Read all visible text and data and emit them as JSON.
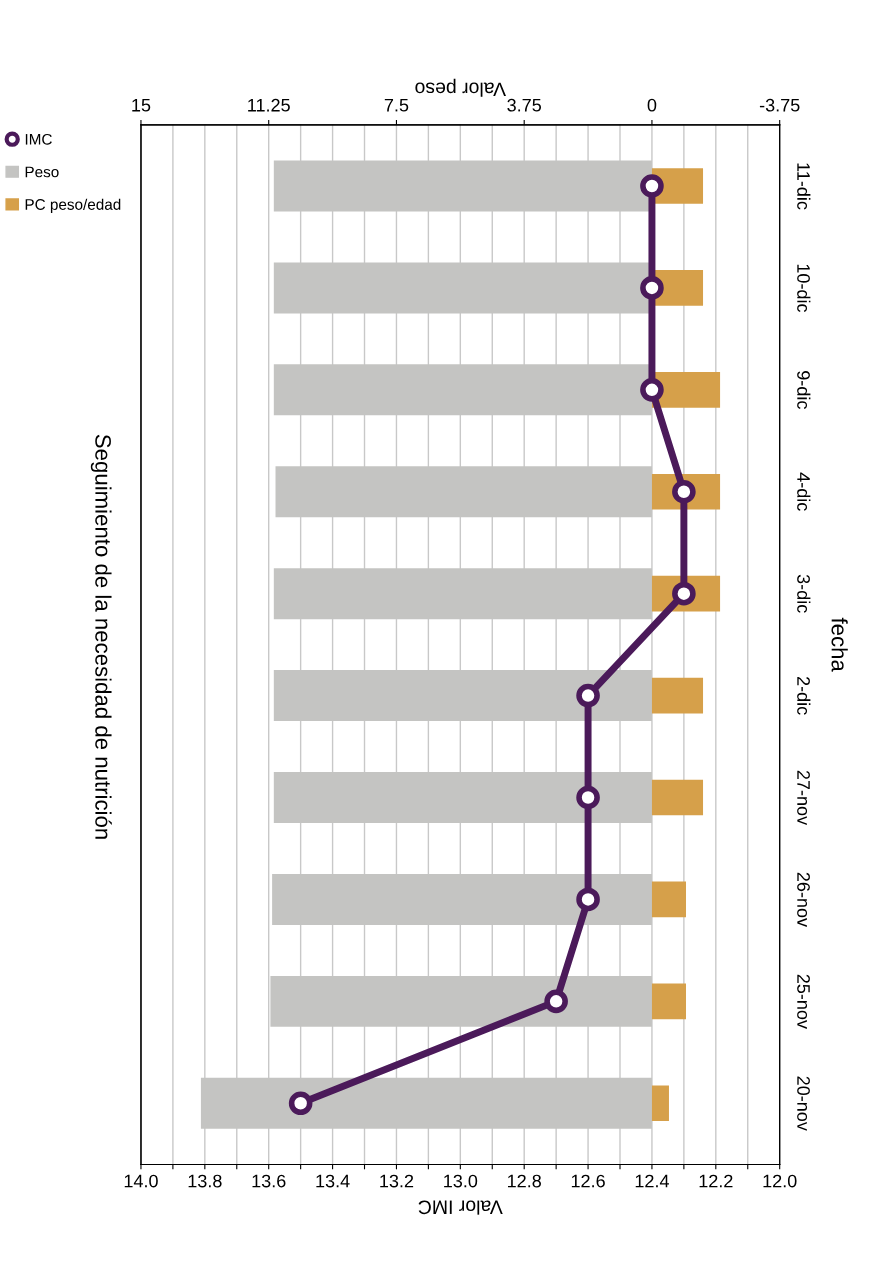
{
  "chart_data": {
    "type": "bar",
    "orientation": "horizontal",
    "title": "Seguimiento de la necesidad de nutrición",
    "xlabel": "Valor IMC",
    "x2label": "Valor peso",
    "ylabel": "fecha",
    "categories": [
      "11-dic",
      "10-dic",
      "9-dic",
      "4-dic",
      "3-dic",
      "2-dic",
      "27-nov",
      "26-nov",
      "25-nov",
      "20-nov"
    ],
    "series": [
      {
        "name": "IMC",
        "type": "line",
        "color": "#4b1a5a",
        "marker": "circle",
        "line_style": "solid",
        "values": [
          12.4,
          12.4,
          12.4,
          12.3,
          12.3,
          12.6,
          12.6,
          12.6,
          12.7,
          13.5
        ]
      },
      {
        "name": "Peso",
        "type": "bar",
        "axis": "x2",
        "color": "#c4c4c2",
        "values": [
          11.1,
          11.1,
          11.1,
          11.05,
          11.1,
          11.1,
          11.1,
          11.15,
          11.2,
          13.24
        ]
      },
      {
        "name": "PC peso/edad",
        "type": "bar",
        "axis": "x2",
        "color": "#d6a04a",
        "values": [
          -1.5,
          -1.5,
          -2,
          -2,
          -2,
          -1.5,
          -1.5,
          -1,
          -1,
          -0.5
        ]
      }
    ],
    "xlim": [
      14.0,
      12.0
    ],
    "xticks": [
      {
        "value": 14.0,
        "label": "14.0"
      },
      {
        "value": 13.9,
        "label": null
      },
      {
        "value": 13.8,
        "label": "13.8"
      },
      {
        "value": 13.7,
        "label": null
      },
      {
        "value": 13.6,
        "label": "13.6"
      },
      {
        "value": 13.5,
        "label": null
      },
      {
        "value": 13.4,
        "label": "13.4"
      },
      {
        "value": 13.3,
        "label": null
      },
      {
        "value": 13.2,
        "label": "13.2"
      },
      {
        "value": 13.1,
        "label": null
      },
      {
        "value": 13.0,
        "label": "13.0"
      },
      {
        "value": 12.9,
        "label": null
      },
      {
        "value": 12.8,
        "label": "12.8"
      },
      {
        "value": 12.7,
        "label": null
      },
      {
        "value": 12.6,
        "label": "12.6"
      },
      {
        "value": 12.5,
        "label": null
      },
      {
        "value": 12.4,
        "label": "12.4"
      },
      {
        "value": 12.3,
        "label": null
      },
      {
        "value": 12.2,
        "label": "12.2"
      },
      {
        "value": 12.1,
        "label": null
      },
      {
        "value": 12.0,
        "label": "12.0"
      }
    ],
    "x2lim": [
      15,
      -3.75
    ],
    "x2ticks": [
      15,
      11.25,
      7.5,
      3.75,
      0,
      -3.75
    ],
    "grid": "x",
    "legend": "left"
  }
}
